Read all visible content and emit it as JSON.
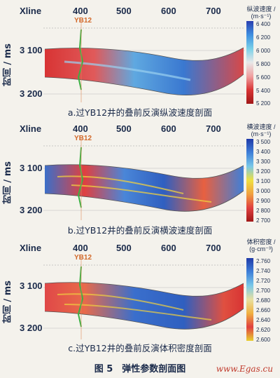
{
  "panels": [
    {
      "xline_label": "Xline",
      "x_ticks": [
        "400",
        "500",
        "600",
        "700"
      ],
      "y_label": "时间 / ms",
      "y_ticks": [
        "3 100",
        "3 200"
      ],
      "well_label": "YB12",
      "colorbar_title": "纵波速度 / (m·s⁻¹)",
      "colorbar_ticks": [
        "6 400",
        "6 200",
        "6 000",
        "5 800",
        "5 600",
        "5 400",
        "5 200"
      ],
      "caption": "a.过YB12井的叠前反演纵波速度剖面"
    },
    {
      "xline_label": "Xline",
      "x_ticks": [
        "400",
        "500",
        "600",
        "700"
      ],
      "y_label": "时间 / ms",
      "y_ticks": [
        "3 100",
        "3 200"
      ],
      "well_label": "YB12",
      "colorbar_title": "横波速度 / (m·s⁻¹)",
      "colorbar_ticks": [
        "3 500",
        "3 400",
        "3 300",
        "3 200",
        "3 100",
        "3 000",
        "2 900",
        "2 800",
        "2 700"
      ],
      "caption": "b.过YB12井的叠前反演横波速度剖面"
    },
    {
      "xline_label": "Xline",
      "x_ticks": [
        "400",
        "500",
        "600",
        "700"
      ],
      "y_label": "时间 / ms",
      "y_ticks": [
        "3 100",
        "3 200"
      ],
      "well_label": "YB12",
      "colorbar_title": "体积密度 / (g·cm⁻³)",
      "colorbar_ticks": [
        "2.760",
        "2.740",
        "2.720",
        "2.700",
        "2.680",
        "2.660",
        "2.640",
        "2.620",
        "2.600"
      ],
      "caption": "c.过YB12井的叠前反演体积密度剖面"
    }
  ],
  "figure_caption": "图 5　弹性参数剖面图",
  "watermark": "www.Egas.cu"
}
